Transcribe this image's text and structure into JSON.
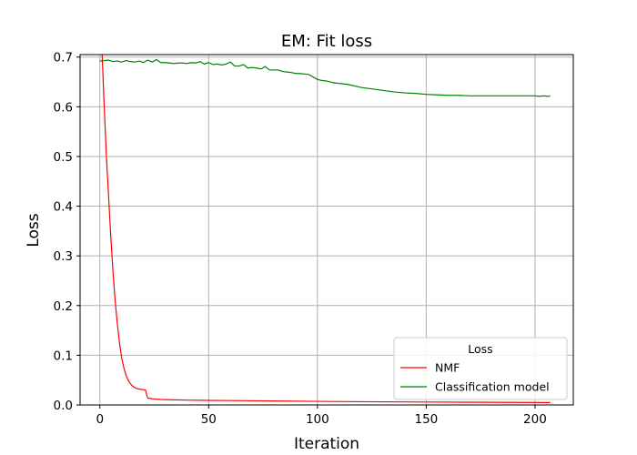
{
  "chart_data": {
    "type": "line",
    "title": "EM: Fit loss",
    "xlabel": "Iteration",
    "ylabel": "Loss",
    "xlim": [
      -9.1,
      217.6
    ],
    "ylim": [
      0.0,
      0.705
    ],
    "xticks": [
      0,
      50,
      100,
      150,
      200
    ],
    "yticks": [
      0.0,
      0.1,
      0.2,
      0.3,
      0.4,
      0.5,
      0.6,
      0.7
    ],
    "xtick_labels": [
      "0",
      "50",
      "100",
      "150",
      "200"
    ],
    "ytick_labels": [
      "0.0",
      "0.1",
      "0.2",
      "0.3",
      "0.4",
      "0.5",
      "0.6",
      "0.7"
    ],
    "grid": true,
    "legend": {
      "title": "Loss",
      "placement": "lower-right"
    },
    "series": [
      {
        "name": "NMF",
        "color": "#ff0000",
        "x": [
          1,
          2,
          3,
          4,
          5,
          6,
          7,
          8,
          9,
          10,
          11,
          12,
          13,
          14,
          15,
          16,
          17,
          18,
          19,
          20,
          21,
          21.5,
          22,
          23,
          25,
          28,
          32,
          40,
          50,
          60,
          80,
          100,
          120,
          150,
          180,
          207
        ],
        "y": [
          0.71,
          0.6,
          0.5,
          0.42,
          0.34,
          0.27,
          0.21,
          0.165,
          0.125,
          0.095,
          0.075,
          0.06,
          0.05,
          0.043,
          0.038,
          0.035,
          0.033,
          0.032,
          0.031,
          0.031,
          0.03,
          0.02,
          0.014,
          0.013,
          0.012,
          0.011,
          0.0105,
          0.0097,
          0.0092,
          0.0088,
          0.008,
          0.0072,
          0.0065,
          0.0058,
          0.0052,
          0.0048
        ]
      },
      {
        "name": "Classification model",
        "color": "#008000",
        "x": [
          0,
          2,
          4,
          6,
          8,
          10,
          12,
          14,
          16,
          18,
          20,
          22,
          24,
          26,
          28,
          30,
          32,
          34,
          36,
          38,
          40,
          42,
          44,
          46,
          48,
          50,
          52,
          54,
          56,
          58,
          60,
          62,
          64,
          66,
          68,
          70,
          72,
          74,
          76,
          78,
          80,
          82,
          84,
          86,
          88,
          90,
          92,
          94,
          96,
          98,
          100,
          102,
          104,
          106,
          108,
          110,
          112,
          114,
          116,
          118,
          120,
          125,
          130,
          135,
          140,
          145,
          150,
          155,
          160,
          165,
          170,
          175,
          180,
          185,
          190,
          195,
          200,
          202,
          204,
          206,
          207
        ],
        "y": [
          0.692,
          0.693,
          0.694,
          0.691,
          0.692,
          0.69,
          0.693,
          0.691,
          0.69,
          0.692,
          0.689,
          0.694,
          0.69,
          0.695,
          0.689,
          0.689,
          0.688,
          0.687,
          0.688,
          0.688,
          0.687,
          0.689,
          0.688,
          0.691,
          0.686,
          0.689,
          0.685,
          0.686,
          0.684,
          0.686,
          0.69,
          0.682,
          0.682,
          0.685,
          0.678,
          0.679,
          0.678,
          0.676,
          0.681,
          0.674,
          0.674,
          0.674,
          0.671,
          0.67,
          0.669,
          0.667,
          0.667,
          0.666,
          0.665,
          0.66,
          0.655,
          0.653,
          0.652,
          0.65,
          0.648,
          0.647,
          0.646,
          0.645,
          0.643,
          0.641,
          0.639,
          0.636,
          0.633,
          0.63,
          0.628,
          0.627,
          0.625,
          0.624,
          0.623,
          0.623,
          0.622,
          0.622,
          0.622,
          0.622,
          0.622,
          0.622,
          0.622,
          0.621,
          0.622,
          0.621,
          0.622
        ]
      }
    ]
  }
}
